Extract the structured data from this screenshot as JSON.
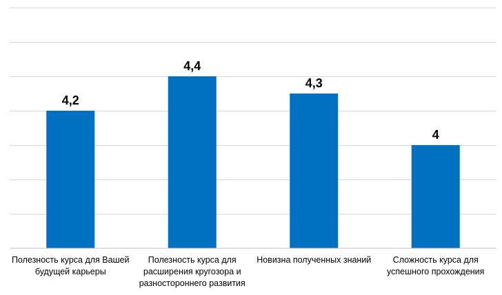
{
  "chart_data": {
    "type": "bar",
    "categories": [
      "Полезность курса для Вашей будущей карьеры",
      "Полезность курса для расширения кругозора и разностороннего развития",
      "Новизна полученных знаний",
      "Сложность курса для успешного прохождения"
    ],
    "values": [
      4.2,
      4.4,
      4.3,
      4
    ],
    "data_labels": [
      "4,2",
      "4,4",
      "4,3",
      "4"
    ],
    "title": "",
    "xlabel": "",
    "ylabel": "",
    "ylim": [
      3.4,
      4.8
    ],
    "grid": true,
    "legend": "none",
    "bar_color": "#0070C0"
  }
}
